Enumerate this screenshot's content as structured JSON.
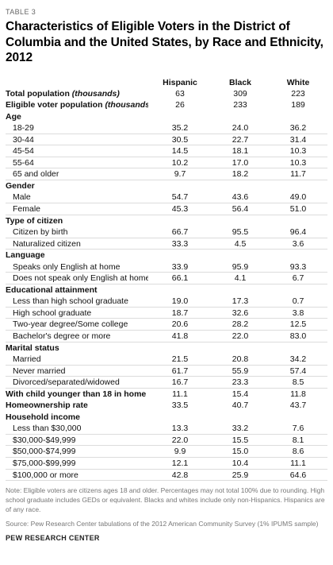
{
  "table_label": "TABLE 3",
  "title": "Characteristics of Eligible Voters in the District of Columbia and the United States, by Race and Ethnicity, 2012",
  "columns": [
    "Hispanic",
    "Black",
    "White"
  ],
  "rows": [
    {
      "type": "stat",
      "label": "Total population",
      "label_em": "(thousands)",
      "values": [
        "63",
        "309",
        "223"
      ]
    },
    {
      "type": "stat",
      "label": "Eligible voter population",
      "label_em": "(thousands)",
      "values": [
        "26",
        "233",
        "189"
      ]
    },
    {
      "type": "section",
      "label": "Age",
      "values": [
        "",
        "",
        ""
      ]
    },
    {
      "type": "sub",
      "label": "18-29",
      "values": [
        "35.2",
        "24.0",
        "36.2"
      ]
    },
    {
      "type": "sub",
      "label": "30-44",
      "values": [
        "30.5",
        "22.7",
        "31.4"
      ]
    },
    {
      "type": "sub",
      "label": "45-54",
      "values": [
        "14.5",
        "18.1",
        "10.3"
      ]
    },
    {
      "type": "sub",
      "label": "55-64",
      "values": [
        "10.2",
        "17.0",
        "10.3"
      ]
    },
    {
      "type": "sub",
      "label": "65 and older",
      "values": [
        "9.7",
        "18.2",
        "11.7"
      ]
    },
    {
      "type": "section",
      "label": "Gender",
      "values": [
        "",
        "",
        ""
      ]
    },
    {
      "type": "sub",
      "label": "Male",
      "values": [
        "54.7",
        "43.6",
        "49.0"
      ]
    },
    {
      "type": "sub",
      "label": "Female",
      "values": [
        "45.3",
        "56.4",
        "51.0"
      ]
    },
    {
      "type": "section",
      "label": "Type of citizen",
      "values": [
        "",
        "",
        ""
      ]
    },
    {
      "type": "sub",
      "label": "Citizen by birth",
      "values": [
        "66.7",
        "95.5",
        "96.4"
      ]
    },
    {
      "type": "sub",
      "label": "Naturalized citizen",
      "values": [
        "33.3",
        "4.5",
        "3.6"
      ]
    },
    {
      "type": "section",
      "label": "Language",
      "values": [
        "",
        "",
        ""
      ]
    },
    {
      "type": "sub",
      "label": "Speaks only English at home",
      "values": [
        "33.9",
        "95.9",
        "93.3"
      ]
    },
    {
      "type": "sub",
      "label": "Does not speak only English at home",
      "values": [
        "66.1",
        "4.1",
        "6.7"
      ]
    },
    {
      "type": "section",
      "label": "Educational attainment",
      "values": [
        "",
        "",
        ""
      ]
    },
    {
      "type": "sub",
      "label": "Less than high school graduate",
      "values": [
        "19.0",
        "17.3",
        "0.7"
      ]
    },
    {
      "type": "sub",
      "label": "High school graduate",
      "values": [
        "18.7",
        "32.6",
        "3.8"
      ]
    },
    {
      "type": "sub",
      "label": "Two-year degree/Some college",
      "values": [
        "20.6",
        "28.2",
        "12.5"
      ]
    },
    {
      "type": "sub",
      "label": "Bachelor's degree or more",
      "values": [
        "41.8",
        "22.0",
        "83.0"
      ]
    },
    {
      "type": "section",
      "label": "Marital status",
      "values": [
        "",
        "",
        ""
      ]
    },
    {
      "type": "sub",
      "label": "Married",
      "values": [
        "21.5",
        "20.8",
        "34.2"
      ]
    },
    {
      "type": "sub",
      "label": "Never married",
      "values": [
        "61.7",
        "55.9",
        "57.4"
      ]
    },
    {
      "type": "sub",
      "label": "Divorced/separated/widowed",
      "values": [
        "16.7",
        "23.3",
        "8.5"
      ]
    },
    {
      "type": "stat",
      "label": "With child younger than 18 in home",
      "values": [
        "11.1",
        "15.4",
        "11.8"
      ]
    },
    {
      "type": "stat",
      "label": "Homeownership rate",
      "values": [
        "33.5",
        "40.7",
        "43.7"
      ]
    },
    {
      "type": "section",
      "label": "Household income",
      "values": [
        "",
        "",
        ""
      ]
    },
    {
      "type": "sub",
      "label": "Less than $30,000",
      "values": [
        "13.3",
        "33.2",
        "7.6"
      ]
    },
    {
      "type": "sub",
      "label": "$30,000-$49,999",
      "values": [
        "22.0",
        "15.5",
        "8.1"
      ]
    },
    {
      "type": "sub",
      "label": "$50,000-$74,999",
      "values": [
        "9.9",
        "15.0",
        "8.6"
      ]
    },
    {
      "type": "sub",
      "label": "$75,000-$99,999",
      "values": [
        "12.1",
        "10.4",
        "11.1"
      ]
    },
    {
      "type": "sub",
      "label": "$100,000 or more",
      "values": [
        "42.8",
        "25.9",
        "64.6"
      ]
    }
  ],
  "note": "Note: Eligible voters are citizens ages 18 and older. Percentages may not total 100% due to rounding. High school graduate includes GEDs or equivalent. Blacks and whites include only non-Hispanics. Hispanics are of any race.",
  "source": "Source: Pew Research Center tabulations of the 2012 American Community Survey (1% IPUMS sample)",
  "footer": "PEW RESEARCH CENTER"
}
